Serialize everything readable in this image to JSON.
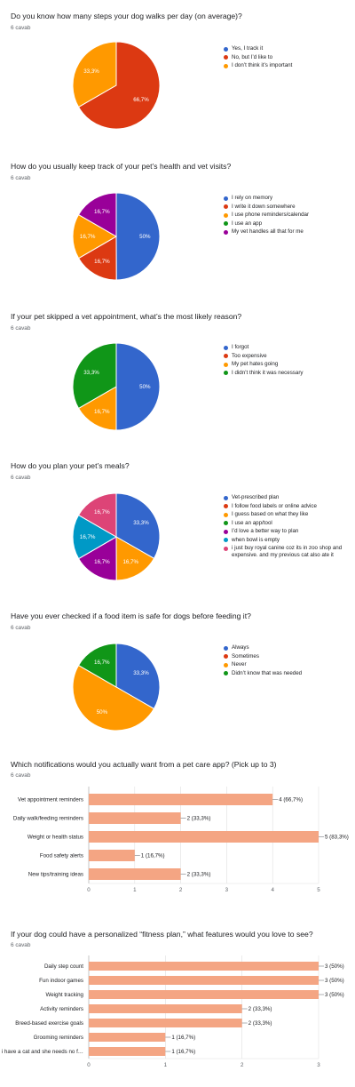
{
  "count_label": "6 cavab",
  "chart_data": [
    {
      "type": "pie",
      "title": "Do you know how many steps your dog walks per day (on average)?",
      "slices": [
        {
          "label": "Yes, I track it",
          "value": 0,
          "display": "",
          "color": "#3366cc"
        },
        {
          "label": "No, but I’d like to",
          "value": 66.7,
          "display": "66,7%",
          "color": "#dc3912"
        },
        {
          "label": "I don’t think it’s important",
          "value": 33.3,
          "display": "33,3%",
          "color": "#ff9900"
        }
      ]
    },
    {
      "type": "pie",
      "title": "How do you usually keep track of your pet’s health and vet visits?",
      "slices": [
        {
          "label": "I rely on memory",
          "value": 50,
          "display": "50%",
          "color": "#3366cc"
        },
        {
          "label": "I write it down somewhere",
          "value": 16.7,
          "display": "16,7%",
          "color": "#dc3912"
        },
        {
          "label": "I use phone reminders/calendar",
          "value": 16.7,
          "display": "16,7%",
          "color": "#ff9900"
        },
        {
          "label": "I use an app",
          "value": 0,
          "display": "",
          "color": "#109618"
        },
        {
          "label": "My vet handles all that for me",
          "value": 16.7,
          "display": "16,7%",
          "color": "#990099"
        }
      ]
    },
    {
      "type": "pie",
      "title": "If your pet skipped a vet appointment, what’s the most likely reason?",
      "slices": [
        {
          "label": "I forgot",
          "value": 50,
          "display": "50%",
          "color": "#3366cc"
        },
        {
          "label": "Too expensive",
          "value": 0,
          "display": "",
          "color": "#dc3912"
        },
        {
          "label": "My pet hates going",
          "value": 16.7,
          "display": "16,7%",
          "color": "#ff9900"
        },
        {
          "label": "I didn’t think it was necessary",
          "value": 33.3,
          "display": "33,3%",
          "color": "#109618"
        }
      ]
    },
    {
      "type": "pie",
      "title": "How do you plan your pet’s meals?",
      "slices": [
        {
          "label": "Vet-prescribed plan",
          "value": 33.3,
          "display": "33,3%",
          "color": "#3366cc"
        },
        {
          "label": "I follow food labels or online advice",
          "value": 0,
          "display": "",
          "color": "#dc3912"
        },
        {
          "label": "I guess based on what they like",
          "value": 16.7,
          "display": "16,7%",
          "color": "#ff9900"
        },
        {
          "label": "I use an app/tool",
          "value": 0,
          "display": "",
          "color": "#109618"
        },
        {
          "label": "I’d love a better way to plan",
          "value": 16.7,
          "display": "16,7%",
          "color": "#990099"
        },
        {
          "label": "when bowl is empty",
          "value": 16.7,
          "display": "16,7%",
          "color": "#0099c6"
        },
        {
          "label": "i just buy royal canine coz its in zoo shop and expensive. and my previous cat also ate it",
          "value": 16.7,
          "display": "16,7%",
          "color": "#dd4477"
        }
      ]
    },
    {
      "type": "pie",
      "title": "Have you ever checked if a food item is safe for dogs before feeding it?",
      "slices": [
        {
          "label": "Always",
          "value": 33.3,
          "display": "33,3%",
          "color": "#3366cc"
        },
        {
          "label": "Sometimes",
          "value": 0,
          "display": "",
          "color": "#dc3912"
        },
        {
          "label": "Never",
          "value": 50,
          "display": "50%",
          "color": "#ff9900"
        },
        {
          "label": "Didn’t know that was needed",
          "value": 16.7,
          "display": "16,7%",
          "color": "#109618"
        }
      ]
    },
    {
      "type": "bar",
      "title": "Which notifications would you actually want from a pet care app? (Pick up to 3)",
      "categories": [
        "Vet appointment reminders",
        "Daily walk/feeding reminders",
        "Weight or health status",
        "Food safety alerts",
        "New tips/training ideas"
      ],
      "values": [
        4,
        2,
        5,
        1,
        2
      ],
      "labels": [
        "4 (66,7%)",
        "2 (33,3%)",
        "5 (83,3%)",
        "1 (16,7%)",
        "2 (33,3%)"
      ],
      "xlim": [
        0,
        5
      ],
      "ticks": [
        0,
        1,
        2,
        3,
        4,
        5
      ],
      "color": "#f4a583"
    },
    {
      "type": "bar",
      "title": "If your dog could have a personalized “fitness plan,” what features would you love to see?",
      "categories": [
        "Daily step count",
        "Fun indoor games",
        "Weight tracking",
        "Activity reminders",
        "Breed-based exercise goals",
        "Grooming reminders",
        "i have a cat and she needs no f…"
      ],
      "values": [
        3,
        3,
        3,
        2,
        2,
        1,
        1
      ],
      "labels": [
        "3 (50%)",
        "3 (50%)",
        "3 (50%)",
        "2 (33,3%)",
        "2 (33,3%)",
        "1 (16,7%)",
        "1 (16,7%)"
      ],
      "xlim": [
        0,
        3
      ],
      "ticks": [
        0,
        1,
        2,
        3
      ],
      "color": "#f4a583"
    }
  ]
}
